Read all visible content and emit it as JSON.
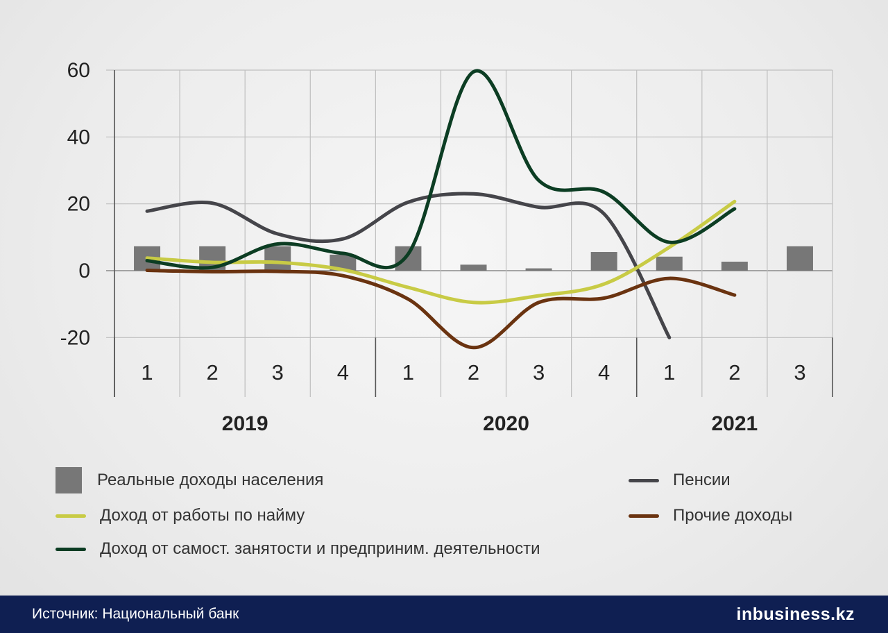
{
  "chart_data": {
    "type": "line",
    "ylim": [
      -20,
      60
    ],
    "yticks": [
      "60",
      "40",
      "20",
      "0",
      "-20"
    ],
    "quarters": [
      "1",
      "2",
      "3",
      "4",
      "1",
      "2",
      "3",
      "4",
      "1",
      "2",
      "3"
    ],
    "years": [
      {
        "label": "2019",
        "from": 0,
        "to": 3
      },
      {
        "label": "2020",
        "from": 4,
        "to": 7
      },
      {
        "label": "2021",
        "from": 8,
        "to": 10
      }
    ],
    "grid": true,
    "series": [
      {
        "name": "Реальные доходы населения",
        "kind": "bar",
        "color": "#777777",
        "values": [
          7.3,
          7.3,
          7.3,
          4.8,
          7.3,
          1.8,
          0.7,
          5.6,
          4.2,
          2.7,
          7.3
        ]
      },
      {
        "name": "Пенсии",
        "kind": "line",
        "color": "#45454a",
        "values": [
          17.8,
          20.2,
          11.0,
          9.5,
          20.5,
          23.0,
          19.0,
          17.0,
          -20.0,
          null,
          null
        ]
      },
      {
        "name": "Доход от работы по найму",
        "kind": "line",
        "color": "#c8cb45",
        "values": [
          3.8,
          2.5,
          2.5,
          0.3,
          -5.0,
          -9.5,
          -7.5,
          -4.0,
          7.0,
          20.7,
          null
        ]
      },
      {
        "name": "Прочие доходы",
        "kind": "line",
        "color": "#6a3310",
        "values": [
          0.1,
          -0.3,
          -0.2,
          -1.5,
          -8.5,
          -23.0,
          -9.5,
          -8.2,
          -2.3,
          -7.3,
          null
        ]
      },
      {
        "name": "Доход от самост. занятости и предприним. деятельности",
        "kind": "line",
        "color": "#0c3d23",
        "values": [
          3.0,
          1.0,
          8.0,
          5.2,
          5.0,
          59.5,
          27.0,
          23.5,
          8.5,
          18.5,
          null
        ]
      }
    ]
  },
  "legend": {
    "bar_label": "Реальные доходы населения",
    "pensions_label": "Пенсии",
    "wages_label": "Доход от работы по найму",
    "other_label": "Прочие доходы",
    "selfemp_label": "Доход от самост. занятости и предприним. деятельности"
  },
  "footer": {
    "source": "Источник: Национальный банк",
    "logo_in": "in",
    "logo_rest": "business.kz"
  },
  "colors": {
    "grid": "#bfbfbf",
    "axis": "#222222",
    "footer_bg": "#0f1f52"
  }
}
